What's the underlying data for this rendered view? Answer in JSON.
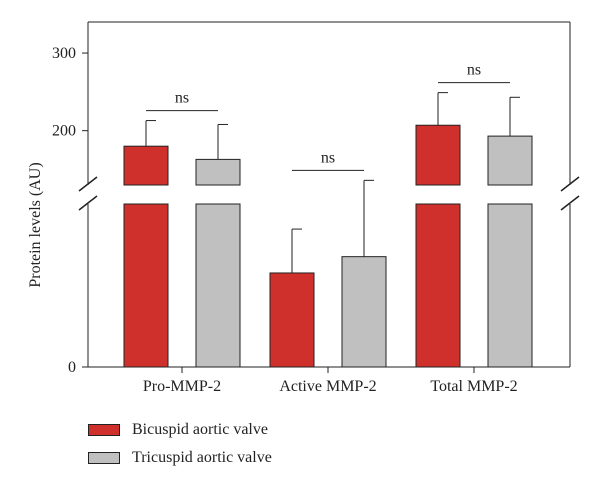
{
  "chart_data": {
    "type": "bar",
    "title": "",
    "xlabel": "",
    "ylabel": "Protein levels (AU)",
    "categories": [
      "Pro-MMP-2",
      "Active MMP-2",
      "Total MMP-2"
    ],
    "series": [
      {
        "name": "Bicuspid aortic valve",
        "color": "#d0302b",
        "values": [
          180,
          75,
          207
        ],
        "errors": [
          33,
          35,
          42
        ]
      },
      {
        "name": "Tricuspid aortic valve",
        "color": "#c0c0c0",
        "values": [
          163,
          88,
          193
        ],
        "errors": [
          45,
          48,
          50
        ]
      }
    ],
    "yticks": [
      0,
      200,
      300
    ],
    "axis_break": true,
    "y_lower_segment": [
      0,
      130
    ],
    "y_upper_segment": [
      130,
      340
    ],
    "significance": [
      "ns",
      "ns",
      "ns"
    ],
    "grid": false,
    "legend_position": "bottom-left"
  }
}
